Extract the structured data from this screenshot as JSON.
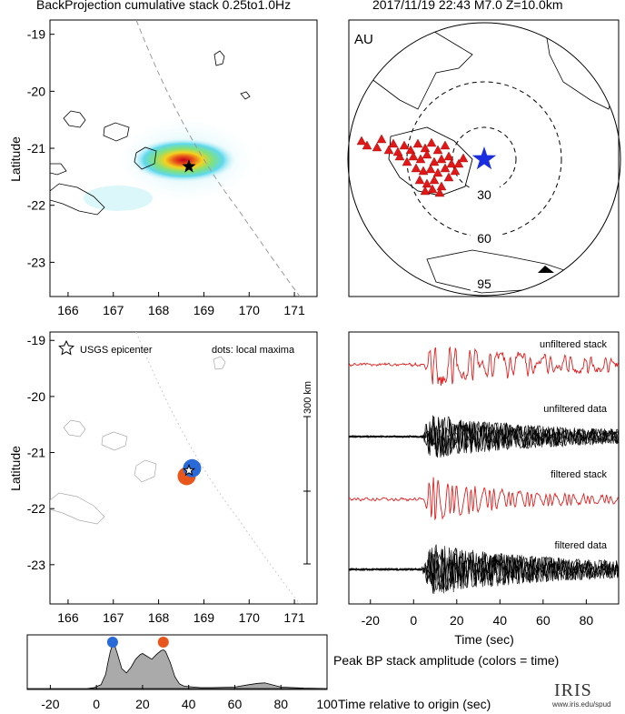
{
  "header": {
    "left_title": "BackProjection cumulative stack 0.25to1.0Hz",
    "right_title": "2017/11/19 22:43  M7.0  Z=10.0km"
  },
  "map_top": {
    "ylabel": "Latitude",
    "xticks": [
      "166",
      "167",
      "168",
      "169",
      "170",
      "171"
    ],
    "yticks": [
      "-19",
      "-20",
      "-21",
      "-22",
      "-23"
    ],
    "epicenter": {
      "lon": 168.67,
      "lat": -21.32
    }
  },
  "station_map": {
    "label": "AU",
    "rings": [
      "30",
      "60",
      "95"
    ]
  },
  "map_bottom": {
    "ylabel": "Latitude",
    "xticks": [
      "166",
      "167",
      "168",
      "169",
      "170",
      "171"
    ],
    "yticks": [
      "-19",
      "-20",
      "-21",
      "-22",
      "-23"
    ],
    "legend_epicenter": "USGS epicenter",
    "legend_dots": "dots: local maxima",
    "scale_label": "300 km",
    "maxima": [
      {
        "lon": 168.62,
        "lat": -21.42,
        "color": "#e8561c"
      },
      {
        "lon": 168.74,
        "lat": -21.28,
        "color": "#2a6ad8"
      }
    ]
  },
  "traces": {
    "labels": [
      "unfiltered stack",
      "unfiltered data",
      "filtered stack",
      "filtered data"
    ],
    "xticks": [
      "-20",
      "0",
      "20",
      "40",
      "60",
      "80"
    ],
    "xlabel": "Time (sec)",
    "red": "#e02020",
    "black": "#000000"
  },
  "chart_data": {
    "type": "area",
    "title": "Peak BP stack amplitude (colors = time)",
    "xlabel": "Time relative to origin (sec)",
    "xlim": [
      -30,
      100
    ],
    "ylim": [
      0,
      1
    ],
    "xticks": [
      "-20",
      "0",
      "20",
      "40",
      "60",
      "80",
      "100"
    ],
    "x": [
      -30,
      -4,
      -1,
      2,
      4,
      5,
      6,
      7,
      8,
      9,
      11,
      13,
      15,
      17,
      19,
      20,
      22,
      24,
      26,
      28,
      29,
      30,
      32,
      34,
      36,
      38,
      40,
      45,
      50,
      60,
      66,
      70,
      73,
      76,
      80,
      90,
      100
    ],
    "y": [
      0,
      0,
      0.02,
      0.08,
      0.3,
      0.55,
      0.78,
      0.93,
      0.9,
      0.75,
      0.42,
      0.33,
      0.45,
      0.62,
      0.72,
      0.74,
      0.68,
      0.62,
      0.72,
      0.8,
      0.82,
      0.78,
      0.55,
      0.25,
      0.1,
      0.05,
      0.04,
      0.02,
      0.02,
      0.03,
      0.08,
      0.11,
      0.12,
      0.08,
      0.03,
      0.01,
      0
    ],
    "peaks": [
      {
        "x": 7,
        "color": "#2a6ad8"
      },
      {
        "x": 29,
        "color": "#e8561c"
      }
    ]
  },
  "logo": {
    "name": "IRIS",
    "url": "www.iris.edu/spud"
  }
}
